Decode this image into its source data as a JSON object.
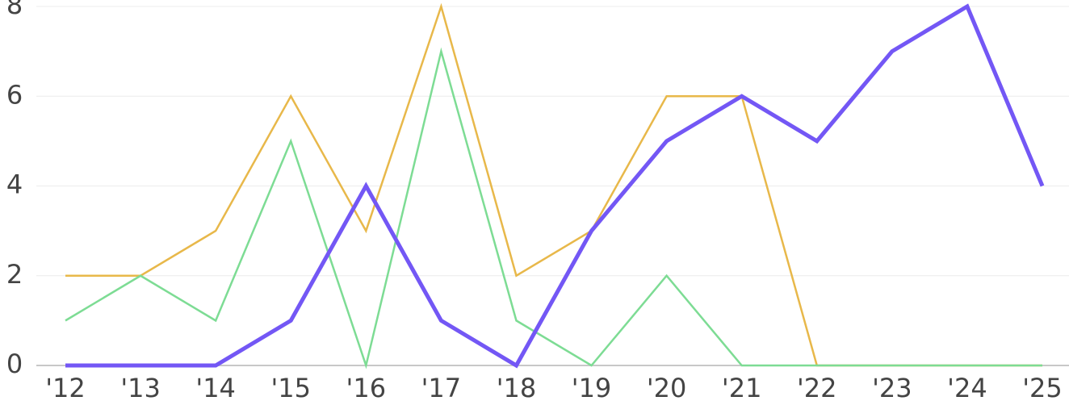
{
  "chart_data": {
    "type": "line",
    "categories": [
      "'12",
      "'13",
      "'14",
      "'15",
      "'16",
      "'17",
      "'18",
      "'19",
      "'20",
      "'21",
      "'22",
      "'23",
      "'24",
      "'25"
    ],
    "series": [
      {
        "color": "#e8b84a",
        "values": [
          2,
          2,
          3,
          6,
          3,
          8,
          2,
          3,
          6,
          6,
          0,
          0,
          0,
          0
        ]
      },
      {
        "color": "#7ddc94",
        "values": [
          1,
          2,
          1,
          5,
          0,
          7,
          1,
          0,
          2,
          0,
          0,
          0,
          0,
          0
        ]
      },
      {
        "color": "#7357f5",
        "values": [
          0,
          0,
          0,
          1,
          4,
          1,
          0,
          3,
          5,
          6,
          5,
          7,
          8,
          4
        ]
      }
    ],
    "ylim": [
      0,
      8
    ],
    "yticks": [
      0,
      2,
      4,
      6,
      8
    ],
    "grid": true
  }
}
